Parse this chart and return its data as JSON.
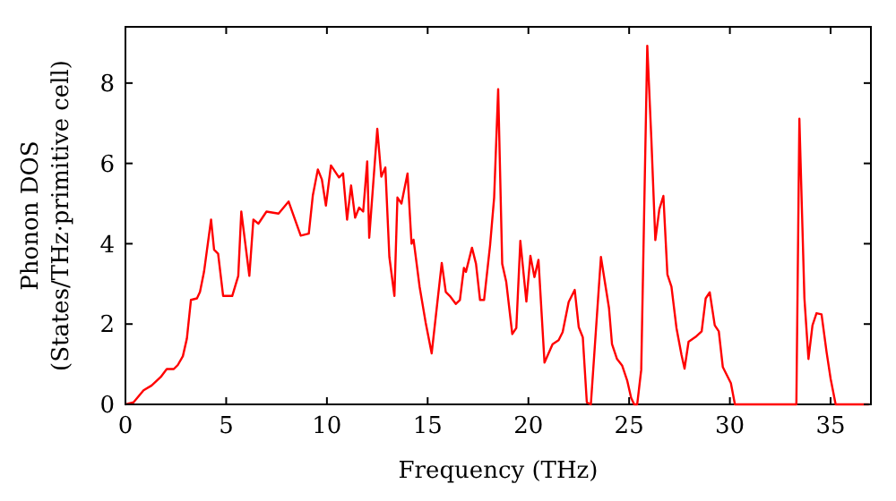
{
  "chart_data": {
    "type": "line",
    "xlabel": "Frequency (THz)",
    "ylabel": "Phonon DOS\n(States/THz·primitive cell)",
    "xlim": [
      0,
      37
    ],
    "ylim": [
      0,
      9.4
    ],
    "xticks": [
      0,
      5,
      10,
      15,
      20,
      25,
      30,
      35
    ],
    "yticks": [
      0,
      2,
      4,
      6,
      8
    ],
    "grid": false,
    "series": [
      {
        "color": "#ff0000",
        "x": [
          0,
          0.4,
          0.9,
          1.3,
          1.75,
          2.05,
          2.4,
          2.6,
          2.85,
          3.05,
          3.25,
          3.55,
          3.7,
          3.9,
          4.25,
          4.4,
          4.6,
          4.85,
          5.3,
          5.6,
          5.75,
          6.15,
          6.35,
          6.6,
          7.0,
          7.6,
          8.1,
          8.7,
          9.1,
          9.3,
          9.55,
          9.75,
          9.95,
          10.2,
          10.6,
          10.8,
          11.0,
          11.2,
          11.4,
          11.6,
          11.8,
          12.0,
          12.1,
          12.5,
          12.7,
          12.9,
          13.1,
          13.35,
          13.5,
          13.7,
          14.0,
          14.2,
          14.3,
          14.6,
          14.9,
          15.2,
          15.7,
          15.9,
          16.1,
          16.4,
          16.6,
          16.8,
          16.9,
          17.2,
          17.4,
          17.6,
          17.8,
          18.1,
          18.3,
          18.5,
          18.7,
          18.9,
          19.2,
          19.4,
          19.6,
          19.9,
          20.1,
          20.3,
          20.5,
          20.8,
          21.2,
          21.5,
          21.7,
          22.0,
          22.3,
          22.5,
          22.7,
          22.9,
          23.1,
          23.6,
          24.0,
          24.15,
          24.4,
          24.65,
          24.9,
          25.1,
          25.25,
          25.4,
          25.6,
          25.9,
          26.1,
          26.3,
          26.5,
          26.7,
          26.9,
          27.1,
          27.35,
          27.6,
          27.75,
          27.95,
          28.3,
          28.6,
          28.8,
          29.0,
          29.25,
          29.45,
          29.65,
          30.05,
          30.25,
          33.3,
          33.45,
          33.7,
          33.9,
          34.1,
          34.3,
          34.55,
          34.8,
          35.0,
          35.25,
          36.9
        ],
        "values": [
          0,
          0.05,
          0.35,
          0.47,
          0.68,
          0.88,
          0.88,
          0.98,
          1.2,
          1.64,
          2.6,
          2.64,
          2.8,
          3.3,
          4.6,
          3.85,
          3.75,
          2.7,
          2.7,
          3.2,
          4.8,
          3.2,
          4.6,
          4.5,
          4.8,
          4.75,
          5.05,
          4.2,
          4.25,
          5.2,
          5.85,
          5.6,
          4.95,
          5.95,
          5.65,
          5.75,
          4.6,
          5.45,
          4.65,
          4.9,
          4.8,
          6.05,
          4.15,
          6.86,
          5.67,
          5.9,
          3.67,
          2.7,
          5.15,
          5.0,
          5.75,
          4.0,
          4.1,
          2.93,
          2.04,
          1.27,
          3.52,
          2.8,
          2.7,
          2.5,
          2.6,
          3.4,
          3.3,
          3.9,
          3.5,
          2.6,
          2.6,
          3.97,
          5.15,
          7.85,
          3.5,
          3.05,
          1.75,
          1.9,
          4.07,
          2.56,
          3.7,
          3.17,
          3.6,
          1.04,
          1.5,
          1.6,
          1.8,
          2.55,
          2.85,
          1.92,
          1.67,
          0.05,
          0,
          3.67,
          2.4,
          1.5,
          1.13,
          0.97,
          0.6,
          0.16,
          0,
          0,
          0.86,
          8.93,
          6.64,
          4.09,
          4.86,
          5.19,
          3.23,
          2.93,
          1.9,
          1.23,
          0.89,
          1.56,
          1.68,
          1.82,
          2.64,
          2.79,
          1.97,
          1.82,
          0.93,
          0.53,
          0,
          0,
          7.11,
          2.64,
          1.13,
          1.97,
          2.27,
          2.24,
          1.3,
          0.64,
          0,
          0
        ]
      }
    ]
  }
}
